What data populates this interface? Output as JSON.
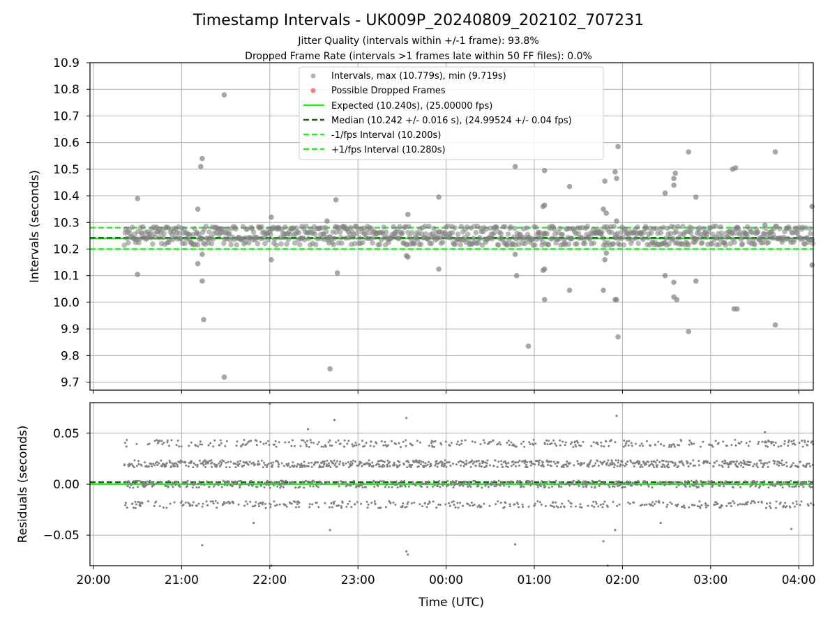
{
  "figure": {
    "title": "Timestamp Intervals - UK009P_20240809_202102_707231",
    "subtitle_line1": "Jitter Quality (intervals within +/-1 frame): 93.8%",
    "subtitle_line2": "Dropped Frame Rate (intervals >1 frames late within 50 FF files): 0.0%"
  },
  "colors": {
    "points": "#808080",
    "dropped": "#ff5555",
    "expected": "#22ee22",
    "median": "#116611",
    "bounds": "#22ee22",
    "grid": "#b0b0b0"
  },
  "chart_data": [
    {
      "type": "scatter",
      "ylabel": "Intervals (seconds)",
      "xlim": [
        "20:00",
        "04:10"
      ],
      "ylim": [
        9.67,
        10.9
      ],
      "y_ticks": [
        "9.7",
        "9.8",
        "9.9",
        "10.0",
        "10.1",
        "10.2",
        "10.3",
        "10.4",
        "10.5",
        "10.6",
        "10.7",
        "10.8",
        "10.9"
      ],
      "grid": true,
      "legend_position": "upper center",
      "legend": [
        {
          "label": "Intervals, max (10.779s), min (9.719s)",
          "style": "point-gray"
        },
        {
          "label": "Possible Dropped Frames",
          "style": "point-red"
        },
        {
          "label": "Expected (10.240s), (25.00000 fps)",
          "style": "solid-green"
        },
        {
          "label": "Median (10.242 +/- 0.016 s), (24.99524 +/- 0.04 fps)",
          "style": "dashed-darkgreen"
        },
        {
          "label": "-1/fps Interval (10.200s)",
          "style": "dashed-green"
        },
        {
          "label": "+1/fps Interval (10.280s)",
          "style": "dashed-green"
        }
      ],
      "reference_lines": {
        "expected": 10.24,
        "median": 10.242,
        "lower": 10.2,
        "upper": 10.28
      },
      "dense_band": {
        "start": "20:21",
        "end": "04:10",
        "values": [
          10.22,
          10.24,
          10.26,
          10.28
        ]
      },
      "outliers": [
        {
          "t": "20:30",
          "y": 10.39
        },
        {
          "t": "20:30",
          "y": 10.105
        },
        {
          "t": "21:11",
          "y": 10.35
        },
        {
          "t": "21:11",
          "y": 10.145
        },
        {
          "t": "21:13",
          "y": 10.51
        },
        {
          "t": "21:14",
          "y": 10.54
        },
        {
          "t": "21:14",
          "y": 10.18
        },
        {
          "t": "21:14",
          "y": 10.08
        },
        {
          "t": "21:15",
          "y": 9.935
        },
        {
          "t": "21:29",
          "y": 10.779
        },
        {
          "t": "21:29",
          "y": 9.719
        },
        {
          "t": "22:01",
          "y": 10.32
        },
        {
          "t": "22:01",
          "y": 10.16
        },
        {
          "t": "22:39",
          "y": 10.305
        },
        {
          "t": "22:41",
          "y": 9.75
        },
        {
          "t": "22:45",
          "y": 10.385
        },
        {
          "t": "22:46",
          "y": 10.11
        },
        {
          "t": "23:33",
          "y": 10.175
        },
        {
          "t": "23:34",
          "y": 10.17
        },
        {
          "t": "23:34",
          "y": 10.33
        },
        {
          "t": "23:55",
          "y": 10.395
        },
        {
          "t": "23:55",
          "y": 10.125
        },
        {
          "t": "00:47",
          "y": 10.51
        },
        {
          "t": "00:47",
          "y": 10.18
        },
        {
          "t": "00:48",
          "y": 10.1
        },
        {
          "t": "00:56",
          "y": 9.835
        },
        {
          "t": "01:06",
          "y": 10.36
        },
        {
          "t": "01:06",
          "y": 10.12
        },
        {
          "t": "01:07",
          "y": 10.495
        },
        {
          "t": "01:07",
          "y": 10.365
        },
        {
          "t": "01:07",
          "y": 10.125
        },
        {
          "t": "01:07",
          "y": 10.01
        },
        {
          "t": "01:24",
          "y": 10.435
        },
        {
          "t": "01:24",
          "y": 10.045
        },
        {
          "t": "01:47",
          "y": 10.35
        },
        {
          "t": "01:47",
          "y": 10.045
        },
        {
          "t": "01:48",
          "y": 10.455
        },
        {
          "t": "01:48",
          "y": 10.16
        },
        {
          "t": "01:49",
          "y": 10.335
        },
        {
          "t": "01:49",
          "y": 10.185
        },
        {
          "t": "01:55",
          "y": 10.49
        },
        {
          "t": "01:55",
          "y": 10.01
        },
        {
          "t": "01:56",
          "y": 10.465
        },
        {
          "t": "01:56",
          "y": 10.305
        },
        {
          "t": "01:56",
          "y": 10.01
        },
        {
          "t": "01:57",
          "y": 10.585
        },
        {
          "t": "01:57",
          "y": 9.87
        },
        {
          "t": "02:29",
          "y": 10.41
        },
        {
          "t": "02:29",
          "y": 10.1
        },
        {
          "t": "02:35",
          "y": 10.465
        },
        {
          "t": "02:35",
          "y": 10.44
        },
        {
          "t": "02:36",
          "y": 10.485
        },
        {
          "t": "02:35",
          "y": 10.075
        },
        {
          "t": "02:35",
          "y": 10.02
        },
        {
          "t": "02:37",
          "y": 10.01
        },
        {
          "t": "02:45",
          "y": 10.565
        },
        {
          "t": "02:45",
          "y": 9.89
        },
        {
          "t": "02:50",
          "y": 10.395
        },
        {
          "t": "02:50",
          "y": 10.08
        },
        {
          "t": "03:15",
          "y": 10.5
        },
        {
          "t": "03:16",
          "y": 9.975
        },
        {
          "t": "03:17",
          "y": 10.505
        },
        {
          "t": "03:18",
          "y": 9.975
        },
        {
          "t": "03:37",
          "y": 10.29
        },
        {
          "t": "03:44",
          "y": 10.565
        },
        {
          "t": "03:44",
          "y": 9.915
        },
        {
          "t": "04:09",
          "y": 10.36
        },
        {
          "t": "04:09",
          "y": 10.14
        }
      ]
    },
    {
      "type": "scatter",
      "ylabel": "Residuals (seconds)",
      "xlabel": "Time (UTC)",
      "xlim": [
        "20:00",
        "04:10"
      ],
      "ylim": [
        -0.08,
        0.08
      ],
      "y_ticks": [
        "−0.05",
        "0.00",
        "0.05"
      ],
      "x_ticks": [
        "20:00",
        "21:00",
        "22:00",
        "23:00",
        "00:00",
        "01:00",
        "02:00",
        "03:00",
        "04:00"
      ],
      "grid": true,
      "reference_lines": {
        "expected": 0.0,
        "median": 0.002
      },
      "dense_bands": [
        -0.02,
        0.0,
        0.02,
        0.04
      ],
      "outliers": [
        {
          "t": "21:14",
          "y": -0.06
        },
        {
          "t": "21:49",
          "y": -0.038
        },
        {
          "t": "22:00",
          "y": 0.079
        },
        {
          "t": "22:01",
          "y": -0.08
        },
        {
          "t": "22:26",
          "y": 0.054
        },
        {
          "t": "22:41",
          "y": -0.045
        },
        {
          "t": "22:44",
          "y": 0.063
        },
        {
          "t": "23:33",
          "y": -0.066
        },
        {
          "t": "23:34",
          "y": -0.069
        },
        {
          "t": "23:33",
          "y": 0.065
        },
        {
          "t": "00:47",
          "y": -0.059
        },
        {
          "t": "01:47",
          "y": -0.056
        },
        {
          "t": "01:50",
          "y": -0.08
        },
        {
          "t": "01:55",
          "y": -0.045
        },
        {
          "t": "01:56",
          "y": 0.067
        },
        {
          "t": "02:26",
          "y": -0.038
        },
        {
          "t": "03:37",
          "y": 0.051
        },
        {
          "t": "03:55",
          "y": -0.044
        }
      ]
    }
  ]
}
